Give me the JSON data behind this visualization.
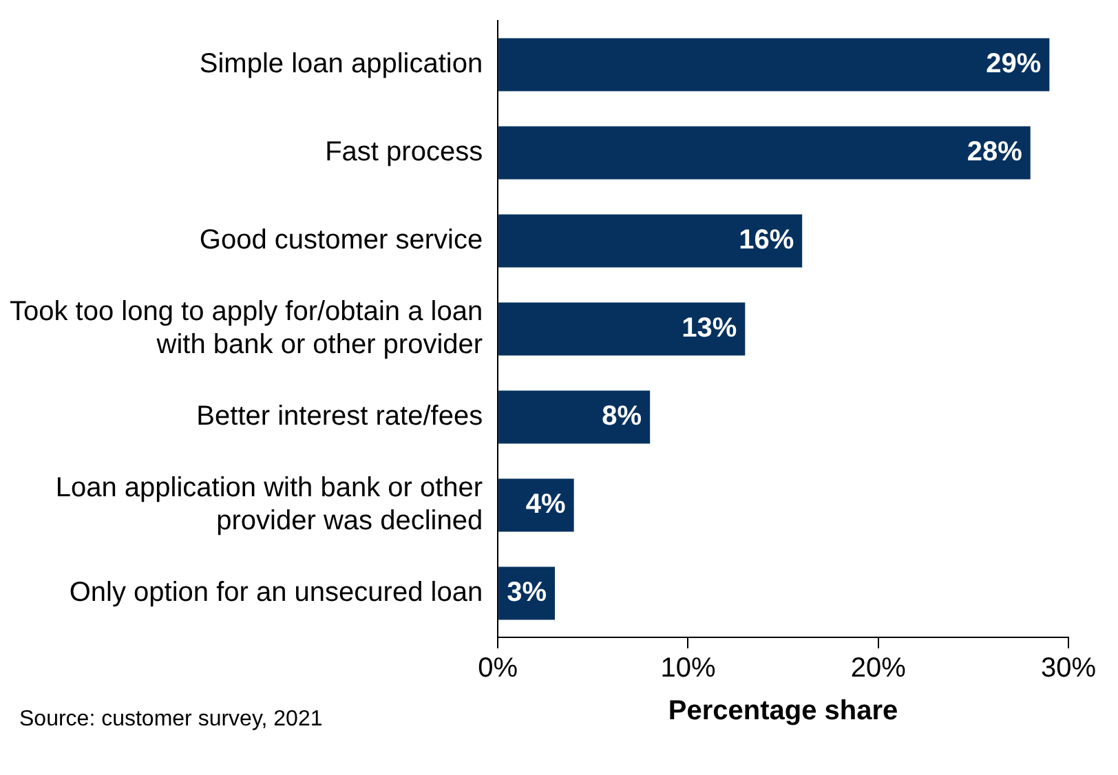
{
  "chart_data": {
    "type": "bar",
    "orientation": "horizontal",
    "xlabel": "Percentage share",
    "categories": [
      "Simple loan application",
      "Fast process",
      "Good customer service",
      "Took too long to apply for/obtain a loan with bank or other provider",
      "Better interest rate/fees",
      "Loan application with bank or other provider was declined",
      "Only option for an unsecured loan"
    ],
    "values": [
      29,
      28,
      16,
      13,
      8,
      4,
      3
    ],
    "value_labels": [
      "29%",
      "28%",
      "16%",
      "13%",
      "8%",
      "4%",
      "3%"
    ],
    "color": "#06315f",
    "xlim": [
      0,
      30
    ],
    "xticks": [
      {
        "value": 0,
        "label": "0%"
      },
      {
        "value": 10,
        "label": "10%"
      },
      {
        "value": 20,
        "label": "20%"
      },
      {
        "value": 30,
        "label": "30%"
      }
    ],
    "grid": false,
    "legend": false,
    "annotations": [
      "Source: customer survey, 2021"
    ]
  }
}
